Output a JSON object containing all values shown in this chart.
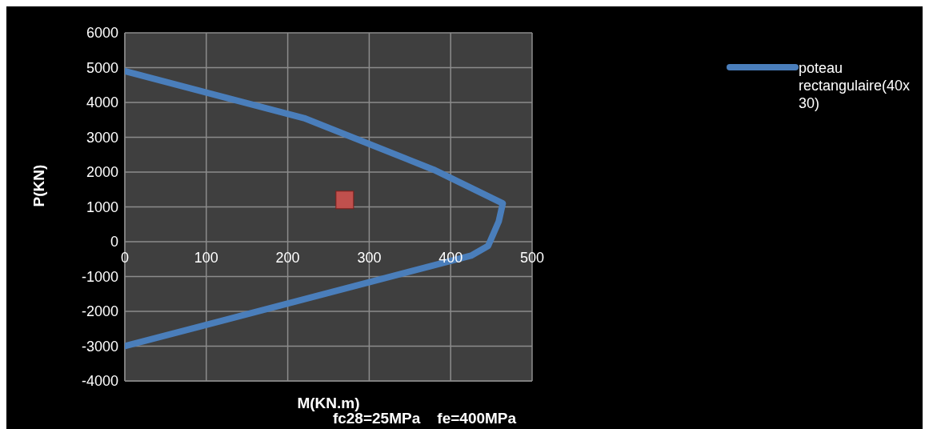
{
  "chart_data": {
    "type": "line",
    "xlabel": "M(KN.m)",
    "ylabel": "P(KN)",
    "annotations": [
      "fc28=25MPa    fe=400MPa"
    ],
    "xlim": [
      0,
      500
    ],
    "xticks": [
      0,
      100,
      200,
      300,
      400,
      500
    ],
    "ylim": [
      -4000,
      6000
    ],
    "yticks": [
      -4000,
      -3000,
      -2000,
      -1000,
      0,
      1000,
      2000,
      3000,
      4000,
      5000,
      6000
    ],
    "grid": true,
    "legend": "right",
    "series": [
      {
        "name": "poteau rectangulaire(40x30)",
        "color": "#4a7ebb",
        "marker": "none",
        "x": [
          0,
          220,
          379,
          464,
          459,
          446,
          425,
          0
        ],
        "values": [
          4900,
          3550,
          2070,
          1100,
          580,
          -120,
          -400,
          -3000
        ]
      },
      {
        "type": "scatter",
        "color": "#c0504d",
        "marker": "square",
        "x": [
          270
        ],
        "values": [
          1200
        ]
      }
    ]
  }
}
